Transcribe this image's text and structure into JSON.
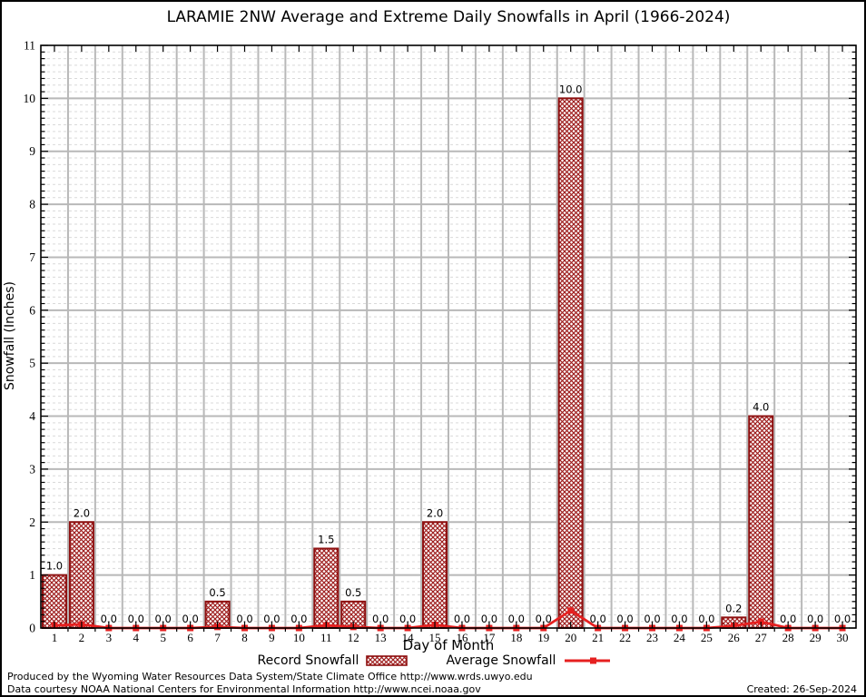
{
  "chart_data": {
    "type": "bar",
    "title": "LARAMIE 2NW Average and Extreme Daily Snowfalls in April (1966-2024)",
    "xlabel": "Day of Month",
    "ylabel": "Snowfall (Inches)",
    "ylim": [
      0,
      11
    ],
    "yticks": [
      0,
      1,
      2,
      3,
      4,
      5,
      6,
      7,
      8,
      9,
      10,
      11
    ],
    "categories": [
      1,
      2,
      3,
      4,
      5,
      6,
      7,
      8,
      9,
      10,
      11,
      12,
      13,
      14,
      15,
      16,
      17,
      18,
      19,
      20,
      21,
      22,
      23,
      24,
      25,
      26,
      27,
      28,
      29,
      30
    ],
    "series": [
      {
        "name": "Record Snowfall",
        "type": "bar",
        "values": [
          1.0,
          2.0,
          0.0,
          0.0,
          0.0,
          0.0,
          0.5,
          0.0,
          0.0,
          0.0,
          1.5,
          0.5,
          0.0,
          0.0,
          2.0,
          0.0,
          0.0,
          0.0,
          0.0,
          10.0,
          0.0,
          0.0,
          0.0,
          0.0,
          0.0,
          0.2,
          4.0,
          0.0,
          0.0,
          0.0
        ]
      },
      {
        "name": "Average Snowfall",
        "type": "line",
        "values": [
          0.05,
          0.07,
          0.0,
          0.0,
          0.0,
          0.0,
          0.02,
          0.0,
          0.0,
          0.0,
          0.05,
          0.02,
          0.0,
          0.0,
          0.06,
          0.0,
          0.0,
          0.0,
          0.0,
          0.33,
          0.0,
          0.0,
          0.0,
          0.0,
          0.0,
          0.04,
          0.12,
          0.0,
          0.0,
          0.0
        ]
      }
    ],
    "bar_value_labels": [
      "1.0",
      "2.0",
      "0.0",
      "0.0",
      "0.0",
      "0.0",
      "0.5",
      "0.0",
      "0.0",
      "0.0",
      "1.5",
      "0.5",
      "0.0",
      "0.0",
      "2.0",
      "0.0",
      "0.0",
      "0.0",
      "0.0",
      "10.0",
      "0.0",
      "0.0",
      "0.0",
      "0.0",
      "0.0",
      "0.2",
      "4.0",
      "0.0",
      "0.0",
      "0.0"
    ],
    "grid": "major-and-minor",
    "legend_position": "bottom-center",
    "colors": {
      "bar_edge": "#8e1010",
      "bar_hatch": "#9e1d1d",
      "line": "#e62020",
      "grid_major": "#b8b8b8",
      "grid_minor": "#d9d9d9",
      "axis": "#000000"
    }
  },
  "footer": {
    "line1": "Produced by the Wyoming Water Resources Data System/State Climate Office http://www.wrds.uwyo.edu",
    "line2": "Data courtesy NOAA National Centers for Environmental Information http://www.ncei.noaa.gov",
    "created": "Created: 26-Sep-2024"
  }
}
